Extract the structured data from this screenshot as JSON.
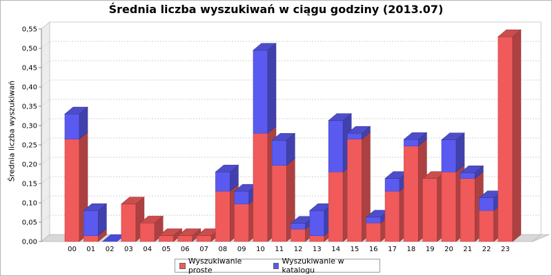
{
  "chart_data": {
    "type": "bar",
    "stacked": true,
    "style": "3d",
    "title": "Średnia liczba wyszukiwań w ciągu godziny (2013.07)",
    "xlabel": "",
    "ylabel": "Średnia liczba wyszukiwań",
    "ylim": [
      0,
      0.55
    ],
    "yticks": [
      "0,00",
      "0,05",
      "0,10",
      "0,15",
      "0,20",
      "0,25",
      "0,30",
      "0,35",
      "0,40",
      "0,45",
      "0,50",
      "0,55"
    ],
    "grid": true,
    "legend_position": "bottom",
    "categories": [
      "00",
      "01",
      "02",
      "03",
      "04",
      "05",
      "06",
      "07",
      "08",
      "09",
      "10",
      "11",
      "12",
      "13",
      "14",
      "15",
      "16",
      "17",
      "18",
      "19",
      "20",
      "21",
      "22",
      "23"
    ],
    "series": [
      {
        "name": "Wyszukiwanie proste",
        "color": "#f05a5a",
        "values": [
          0.265,
          0.015,
          0,
          0.097,
          0.048,
          0.015,
          0.015,
          0.015,
          0.13,
          0.097,
          0.28,
          0.197,
          0.032,
          0.015,
          0.18,
          0.265,
          0.048,
          0.13,
          0.247,
          0.163,
          0.18,
          0.163,
          0.08,
          0.53
        ]
      },
      {
        "name": "Wyszukiwanie w katalogu",
        "color": "#5a5af0",
        "values": [
          0.065,
          0.065,
          0,
          0,
          0,
          0,
          0,
          0,
          0.05,
          0.033,
          0.215,
          0.065,
          0.015,
          0.065,
          0.133,
          0.015,
          0.015,
          0.033,
          0.017,
          0,
          0.083,
          0.015,
          0.033,
          0
        ]
      }
    ]
  }
}
